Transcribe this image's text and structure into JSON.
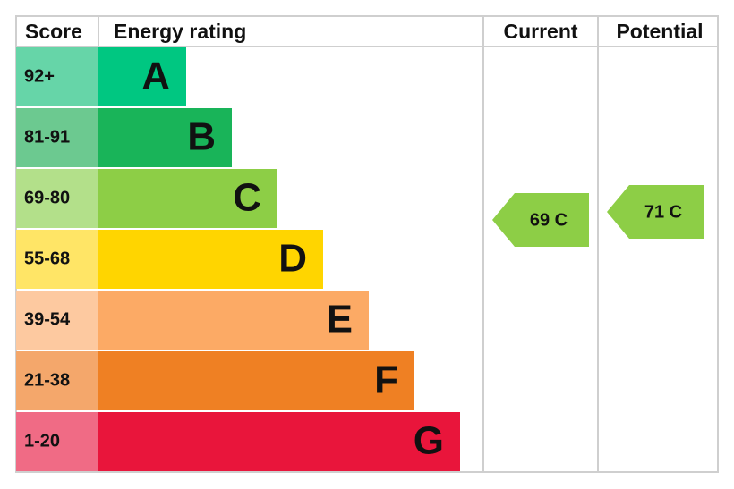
{
  "header": {
    "score": "Score",
    "energy_rating": "Energy rating",
    "current": "Current",
    "potential": "Potential"
  },
  "bands": [
    {
      "range": "92+",
      "letter": "A"
    },
    {
      "range": "81-91",
      "letter": "B"
    },
    {
      "range": "69-80",
      "letter": "C"
    },
    {
      "range": "55-68",
      "letter": "D"
    },
    {
      "range": "39-54",
      "letter": "E"
    },
    {
      "range": "21-38",
      "letter": "F"
    },
    {
      "range": "1-20",
      "letter": "G"
    }
  ],
  "current": "69 C",
  "potential": "71 C"
}
